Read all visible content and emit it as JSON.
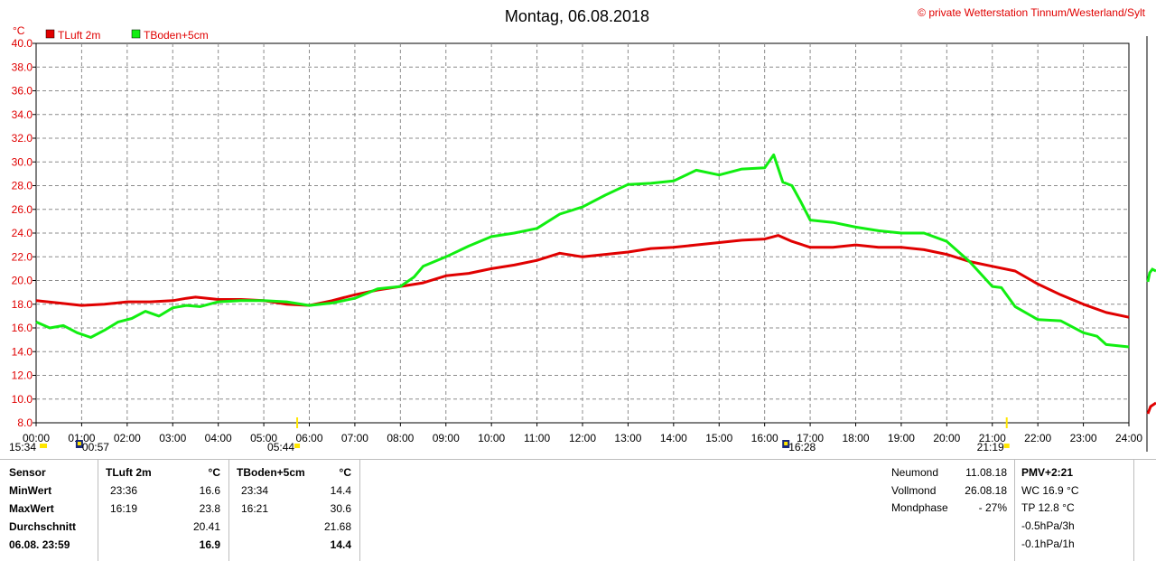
{
  "title": "Montag, 06.08.2018",
  "copyright": "© private Wetterstation Tinnum/Westerland/Sylt",
  "colors": {
    "luft": "#e00000",
    "boden": "#11ee11",
    "grid": "#8c8c8c",
    "axis_text": "#000000",
    "unit_text": "#e00000"
  },
  "chart_data": {
    "type": "line",
    "ylabel": "°C",
    "ylim": [
      8,
      40
    ],
    "y_ticks": [
      "8.0",
      "10.0",
      "12.0",
      "14.0",
      "16.0",
      "18.0",
      "20.0",
      "22.0",
      "24.0",
      "26.0",
      "28.0",
      "30.0",
      "32.0",
      "34.0",
      "36.0",
      "38.0",
      "40.0"
    ],
    "xlim": [
      0,
      24
    ],
    "x_ticks": [
      "00:00",
      "01:00",
      "02:00",
      "03:00",
      "04:00",
      "05:00",
      "06:00",
      "07:00",
      "08:00",
      "09:00",
      "10:00",
      "11:00",
      "12:00",
      "13:00",
      "14:00",
      "15:00",
      "16:00",
      "17:00",
      "18:00",
      "19:00",
      "20:00",
      "21:00",
      "22:00",
      "23:00",
      "24:00"
    ],
    "grid": true,
    "legend": "top-left",
    "series": [
      {
        "name": "TLuft 2m",
        "color": "#e00000",
        "x": [
          0,
          0.5,
          1,
          1.5,
          2,
          2.5,
          3,
          3.3,
          3.5,
          4,
          4.5,
          5,
          5.5,
          6,
          6.5,
          7,
          7.5,
          8,
          8.5,
          9,
          9.5,
          10,
          10.5,
          11,
          11.5,
          12,
          12.5,
          13,
          13.5,
          14,
          14.5,
          15,
          15.5,
          16,
          16.3,
          16.6,
          17,
          17.5,
          18,
          18.5,
          19,
          19.5,
          20,
          20.5,
          21,
          21.5,
          22,
          22.5,
          23,
          23.5,
          24
        ],
        "values": [
          18.3,
          18.1,
          17.9,
          18.0,
          18.2,
          18.2,
          18.3,
          18.5,
          18.6,
          18.4,
          18.4,
          18.3,
          18.0,
          17.9,
          18.3,
          18.8,
          19.2,
          19.5,
          19.8,
          20.4,
          20.6,
          21.0,
          21.3,
          21.7,
          22.3,
          22.0,
          22.2,
          22.4,
          22.7,
          22.8,
          23.0,
          23.2,
          23.4,
          23.5,
          23.8,
          23.3,
          22.8,
          22.8,
          23.0,
          22.8,
          22.8,
          22.6,
          22.2,
          21.6,
          21.2,
          20.8,
          19.7,
          18.8,
          18.0,
          17.3,
          16.9
        ]
      },
      {
        "name": "TBoden+5cm",
        "color": "#11ee11",
        "x": [
          0,
          0.3,
          0.6,
          0.9,
          1.2,
          1.5,
          1.8,
          2.1,
          2.4,
          2.7,
          3.0,
          3.3,
          3.6,
          4.0,
          4.5,
          5.0,
          5.5,
          6.0,
          6.5,
          7.0,
          7.5,
          8.0,
          8.3,
          8.5,
          9.0,
          9.5,
          10.0,
          10.5,
          11.0,
          11.5,
          12.0,
          12.5,
          13.0,
          13.5,
          14.0,
          14.5,
          15.0,
          15.5,
          16.0,
          16.2,
          16.4,
          16.6,
          16.8,
          17.0,
          17.5,
          18.0,
          18.5,
          19.0,
          19.5,
          20.0,
          20.5,
          21.0,
          21.2,
          21.5,
          22.0,
          22.5,
          23.0,
          23.3,
          23.5,
          24.0
        ],
        "values": [
          16.5,
          16.0,
          16.2,
          15.6,
          15.2,
          15.8,
          16.5,
          16.8,
          17.4,
          17.0,
          17.7,
          17.9,
          17.8,
          18.2,
          18.3,
          18.3,
          18.2,
          17.9,
          18.1,
          18.5,
          19.3,
          19.5,
          20.3,
          21.2,
          22.0,
          22.9,
          23.7,
          24.0,
          24.4,
          25.6,
          26.2,
          27.2,
          28.1,
          28.2,
          28.4,
          29.3,
          28.9,
          29.4,
          29.5,
          30.6,
          28.3,
          28.0,
          26.6,
          25.1,
          24.9,
          24.5,
          24.2,
          24.0,
          24.0,
          23.3,
          21.6,
          19.5,
          19.4,
          17.8,
          16.7,
          16.6,
          15.6,
          15.3,
          14.6,
          14.4
        ]
      }
    ],
    "x_events": [
      {
        "time": "15:34",
        "kind": "sunset-prev"
      },
      {
        "time": "00:57",
        "kind": "moon"
      },
      {
        "time": "05:44",
        "kind": "sunrise"
      },
      {
        "time": "16:28",
        "kind": "moon"
      },
      {
        "time": "21:19",
        "kind": "sunset"
      }
    ]
  },
  "stats": {
    "sensor_label": "Sensor",
    "min_label": "MinWert",
    "max_label": "MaxWert",
    "avg_label": "Durchschnitt",
    "date_label": "06.08. 23:59",
    "luft": {
      "name": "TLuft 2m",
      "unit": "°C",
      "min_time": "23:36",
      "min_val": "16.6",
      "max_time": "16:19",
      "max_val": "23.8",
      "avg": "20.41",
      "current": "16.9"
    },
    "boden": {
      "name": "TBoden+5cm",
      "unit": "°C",
      "min_time": "23:34",
      "min_val": "14.4",
      "max_time": "16:21",
      "max_val": "30.6",
      "avg": "21.68",
      "current": "14.4"
    }
  },
  "moon": {
    "neumond_label": "Neumond",
    "neumond_date": "11.08.18",
    "vollmond_label": "Vollmond",
    "vollmond_date": "26.08.18",
    "phase_label": "Mondphase",
    "phase_value": "- 27%"
  },
  "pmv": {
    "title": "PMV+2:21",
    "wc": "WC 16.9 °C",
    "tp": "TP 12.8 °C",
    "p3h": "-0.5hPa/3h",
    "p1h": "-0.1hPa/1h"
  }
}
